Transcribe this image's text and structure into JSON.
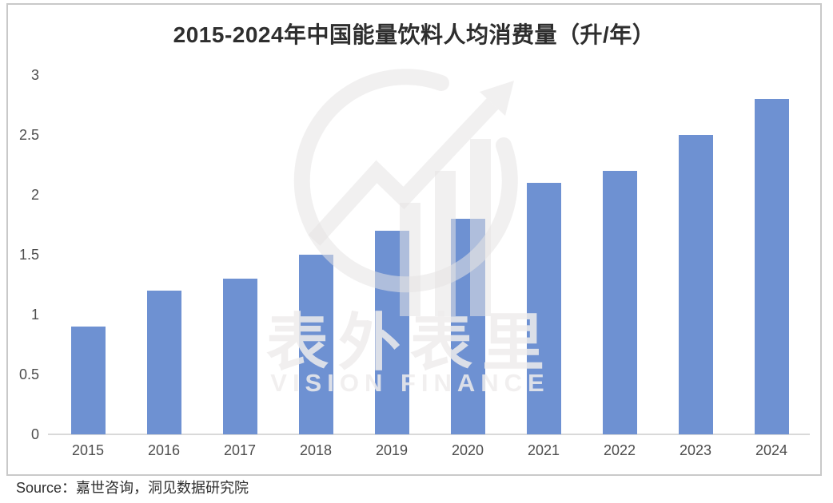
{
  "source_note": "Source：嘉世咨询，洞见数据研究院",
  "watermark": {
    "cn": "表外表里",
    "en": "VISION FINANCE"
  },
  "colors": {
    "bar": "#6e91d2",
    "title": "#2e2e2e",
    "axis_label": "#4d4d4d",
    "baseline": "#d9d9d9",
    "panel_border": "#c9c9c9",
    "watermark_shape": "#e6e3e3",
    "watermark_text": "#efeded"
  },
  "chart_data": {
    "type": "bar",
    "title": "2015-2024年中国能量饮料人均消费量（升/年）",
    "categories": [
      "2015",
      "2016",
      "2017",
      "2018",
      "2019",
      "2020",
      "2021",
      "2022",
      "2023",
      "2024"
    ],
    "values": [
      0.9,
      1.2,
      1.3,
      1.5,
      1.7,
      1.8,
      2.1,
      2.2,
      2.5,
      2.8
    ],
    "xlabel": "",
    "ylabel": "",
    "ylim": [
      0,
      3
    ],
    "yticks": [
      "0",
      "0.5",
      "1",
      "1.5",
      "2",
      "2.5",
      "3"
    ],
    "grid": false,
    "legend": null,
    "unit": "升/年"
  }
}
